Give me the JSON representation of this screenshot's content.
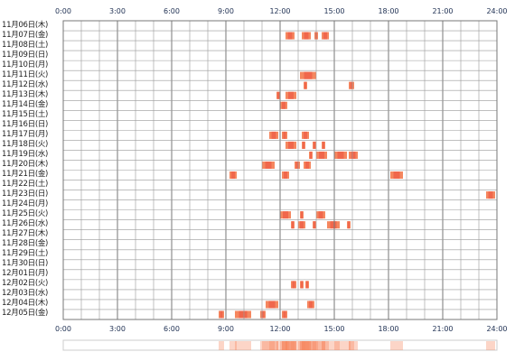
{
  "hours": [
    "0:00",
    "3:00",
    "6:00",
    "9:00",
    "12:00",
    "15:00",
    "18:00",
    "21:00",
    "24:00"
  ],
  "dates": [
    "11月06日(木)",
    "11月07日(金)",
    "11月08日(土)",
    "11月09日(日)",
    "11月10日(月)",
    "11月11日(火)",
    "11月12日(水)",
    "11月13日(木)",
    "11月14日(金)",
    "11月15日(土)",
    "11月16日(日)",
    "11月17日(月)",
    "11月18日(火)",
    "11月19日(水)",
    "11月20日(木)",
    "11月21日(金)",
    "11月22日(土)",
    "11月23日(日)",
    "11月24日(月)",
    "11月25日(火)",
    "11月26日(水)",
    "11月27日(木)",
    "11月28日(金)",
    "11月29日(土)",
    "11月30日(日)",
    "12月01日(月)",
    "12月02日(火)",
    "12月03日(水)",
    "12月04日(木)",
    "12月05日(金)"
  ],
  "colors": {
    "grid": "#999999",
    "border": "#777777",
    "event_dark": "#ee5a44",
    "event_light": "#f5875f",
    "summary_border": "#cccccc"
  },
  "activity": [
    {
      "row": 1,
      "start": 12.3,
      "end": 12.8
    },
    {
      "row": 1,
      "start": 13.2,
      "end": 13.7
    },
    {
      "row": 1,
      "start": 13.9,
      "end": 14.1
    },
    {
      "row": 1,
      "start": 14.3,
      "end": 14.7
    },
    {
      "row": 5,
      "start": 13.1,
      "end": 14.0
    },
    {
      "row": 6,
      "start": 13.3,
      "end": 13.5
    },
    {
      "row": 6,
      "start": 15.8,
      "end": 16.1
    },
    {
      "row": 7,
      "start": 11.8,
      "end": 12.0
    },
    {
      "row": 7,
      "start": 12.3,
      "end": 12.9
    },
    {
      "row": 8,
      "start": 12.0,
      "end": 12.4
    },
    {
      "row": 11,
      "start": 11.4,
      "end": 11.9
    },
    {
      "row": 11,
      "start": 12.1,
      "end": 12.4
    },
    {
      "row": 11,
      "start": 13.2,
      "end": 13.6
    },
    {
      "row": 12,
      "start": 12.3,
      "end": 12.9
    },
    {
      "row": 12,
      "start": 13.2,
      "end": 13.4
    },
    {
      "row": 12,
      "start": 13.8,
      "end": 14.0
    },
    {
      "row": 12,
      "start": 14.3,
      "end": 14.5
    },
    {
      "row": 13,
      "start": 13.6,
      "end": 13.8
    },
    {
      "row": 13,
      "start": 14.0,
      "end": 14.6
    },
    {
      "row": 13,
      "start": 15.0,
      "end": 15.7
    },
    {
      "row": 13,
      "start": 15.8,
      "end": 16.3
    },
    {
      "row": 14,
      "start": 11.0,
      "end": 11.7
    },
    {
      "row": 14,
      "start": 12.8,
      "end": 13.1
    },
    {
      "row": 14,
      "start": 13.3,
      "end": 13.7
    },
    {
      "row": 15,
      "start": 9.2,
      "end": 9.6
    },
    {
      "row": 15,
      "start": 12.1,
      "end": 12.5
    },
    {
      "row": 15,
      "start": 18.1,
      "end": 18.8
    },
    {
      "row": 17,
      "start": 23.4,
      "end": 23.9
    },
    {
      "row": 19,
      "start": 12.0,
      "end": 12.6
    },
    {
      "row": 19,
      "start": 13.1,
      "end": 13.3
    },
    {
      "row": 19,
      "start": 14.0,
      "end": 14.5
    },
    {
      "row": 20,
      "start": 12.6,
      "end": 12.8
    },
    {
      "row": 20,
      "start": 13.0,
      "end": 13.4
    },
    {
      "row": 20,
      "start": 13.8,
      "end": 14.0
    },
    {
      "row": 20,
      "start": 14.6,
      "end": 15.3
    },
    {
      "row": 20,
      "start": 15.7,
      "end": 15.9
    },
    {
      "row": 26,
      "start": 12.6,
      "end": 12.9
    },
    {
      "row": 26,
      "start": 13.1,
      "end": 13.3
    },
    {
      "row": 26,
      "start": 13.4,
      "end": 13.6
    },
    {
      "row": 28,
      "start": 11.2,
      "end": 11.9
    },
    {
      "row": 28,
      "start": 13.5,
      "end": 13.9
    },
    {
      "row": 29,
      "start": 8.6,
      "end": 8.9
    },
    {
      "row": 29,
      "start": 9.5,
      "end": 10.4
    },
    {
      "row": 29,
      "start": 10.9,
      "end": 11.2
    },
    {
      "row": 29,
      "start": 12.1,
      "end": 12.4
    }
  ]
}
